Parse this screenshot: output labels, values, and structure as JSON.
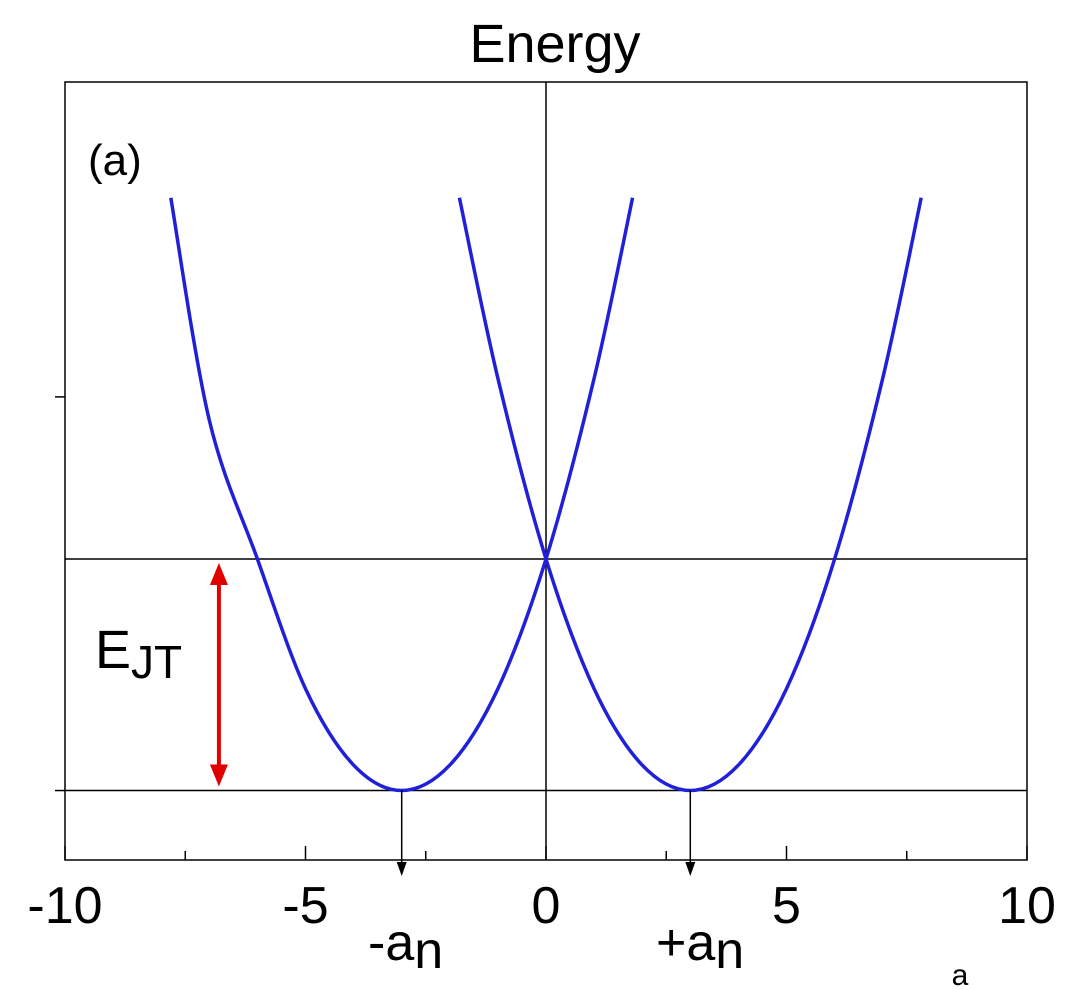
{
  "chart_data": {
    "type": "line",
    "title": "Energy",
    "panel_label": "(a)",
    "xlabel": "a",
    "ylabel": "",
    "xlim": [
      -10,
      10
    ],
    "ylim": [
      -0.3,
      3.06
    ],
    "x_ticks": [
      -10,
      -5,
      0,
      5,
      10
    ],
    "x_tick_labels": [
      "-10",
      "-5",
      "0",
      "5",
      "10"
    ],
    "y_ticks": [
      0,
      1.7
    ],
    "grid": false,
    "series": [
      {
        "x": [
          -7.8,
          -7,
          -6,
          -5,
          -4,
          -3,
          -2,
          -1,
          0,
          1,
          1.8
        ],
        "y": [
          2.56,
          1.6,
          1.0,
          0.44,
          0.11,
          0.0,
          0.11,
          0.44,
          1.0,
          1.78,
          2.56
        ],
        "color": "#2020d8"
      },
      {
        "x": [
          -1.8,
          -1,
          0,
          1,
          2,
          3,
          4,
          5,
          6,
          7,
          7.8
        ],
        "y": [
          2.56,
          1.78,
          1.0,
          0.44,
          0.11,
          0.0,
          0.11,
          0.44,
          1.0,
          1.78,
          2.56
        ],
        "color": "#2020d8"
      }
    ],
    "reference_lines": {
      "horizontal": [
        0,
        1
      ],
      "vertical": [
        0
      ]
    },
    "annotations": {
      "ejt": {
        "label_main": "E",
        "label_sub": "JT",
        "x": -6.8,
        "y_from": 0,
        "y_to": 1,
        "color": "#e00000"
      },
      "minus_an": {
        "label_main": "-a",
        "label_sub": "n",
        "x": -3
      },
      "plus_an": {
        "label_main": "+a",
        "label_sub": "n",
        "x": 3
      }
    }
  }
}
